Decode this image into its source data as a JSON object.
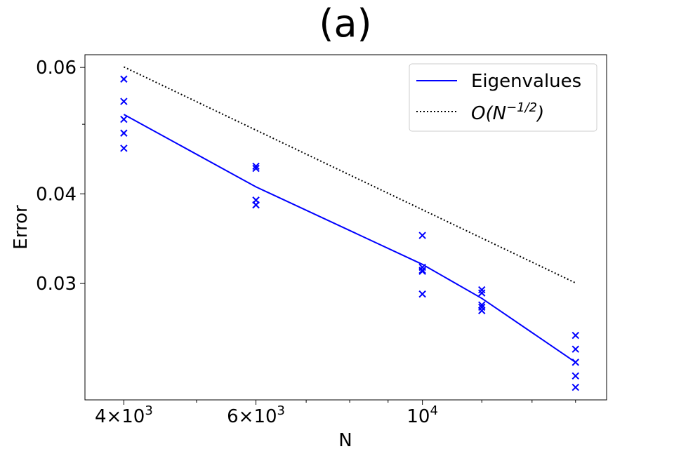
{
  "chart_data": {
    "type": "line",
    "title": "(a)",
    "xlabel": "N",
    "ylabel": "Error",
    "xscale": "log",
    "yscale": "log",
    "xlim": [
      3550,
      17600
    ],
    "ylim": [
      0.02065,
      0.0625
    ],
    "x_ticks": [
      {
        "value": 4000,
        "base": "4×10",
        "exp": "3"
      },
      {
        "value": 6000,
        "base": "6×10",
        "exp": "3"
      },
      {
        "value": 10000,
        "base": "10",
        "exp": "4"
      }
    ],
    "y_ticks": [
      {
        "value": 0.03,
        "label": "0.03"
      },
      {
        "value": 0.04,
        "label": "0.04"
      },
      {
        "value": 0.06,
        "label": "0.06"
      }
    ],
    "legend": {
      "position": "top-right",
      "entries": [
        {
          "label": "Eigenvalues",
          "style": "solid",
          "color": "#0000ff"
        },
        {
          "label_main": "O(N",
          "label_sup": "−1/2",
          "label_tail": ")",
          "style": "dotted",
          "color": "#000000"
        }
      ]
    },
    "series": [
      {
        "name": "Eigenvalues",
        "type": "line",
        "color": "#0000ff",
        "x": [
          4000,
          6000,
          10000,
          12000,
          16000
        ],
        "y": [
          0.0516,
          0.0409,
          0.0319,
          0.0286,
          0.0233
        ]
      },
      {
        "name": "O(N^-1/2)",
        "type": "line",
        "style": "dotted",
        "color": "#000000",
        "x": [
          4000,
          16000
        ],
        "y": [
          0.0601,
          0.03005
        ]
      },
      {
        "name": "Samples",
        "type": "scatter",
        "marker": "x",
        "color": "#0000ff",
        "x": [
          4000,
          4000,
          4000,
          4000,
          4000,
          6000,
          6000,
          6000,
          6000,
          6000,
          10000,
          10000,
          10000,
          10000,
          10000,
          12000,
          12000,
          12000,
          12000,
          12000,
          16000,
          16000,
          16000,
          16000,
          16000
        ],
        "y": [
          0.0578,
          0.0538,
          0.0508,
          0.0486,
          0.0463,
          0.0434,
          0.0437,
          0.0392,
          0.0386,
          0.0386,
          0.035,
          0.0316,
          0.0313,
          0.0312,
          0.029,
          0.0294,
          0.0291,
          0.028,
          0.0278,
          0.0275,
          0.0254,
          0.0243,
          0.0233,
          0.0223,
          0.0215
        ]
      }
    ]
  }
}
